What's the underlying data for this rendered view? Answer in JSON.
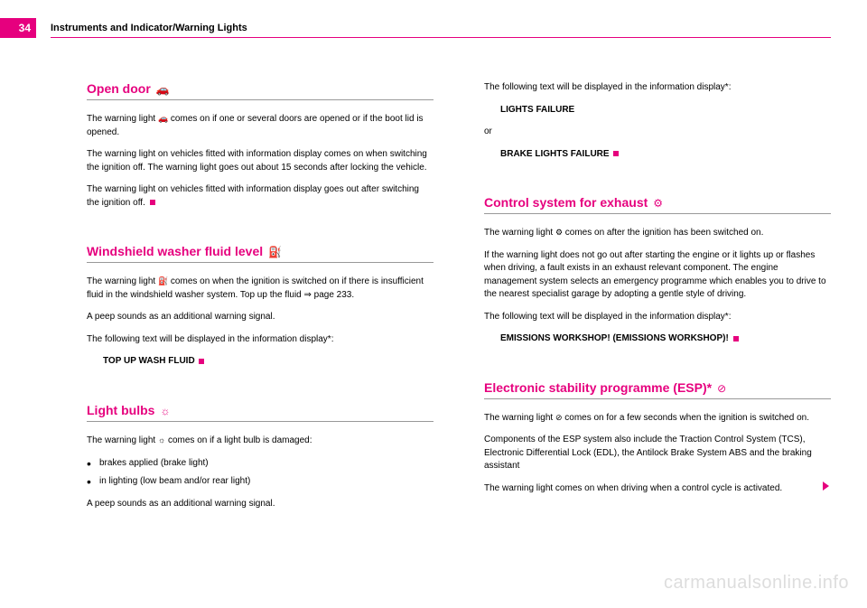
{
  "page_number": "34",
  "header_title": "Instruments and Indicator/Warning Lights",
  "left": {
    "s1": {
      "heading": "Open door",
      "icon": "🚗",
      "p1_a": "The warning light ",
      "p1_b": " comes on if one or several doors are opened or if the boot lid is opened.",
      "p2": "The warning light on vehicles fitted with information display comes on when switching the ignition off. The warning light goes out about 15 seconds after locking the vehicle.",
      "p3": "The warning light on vehicles fitted with information display goes out after switching the ignition off."
    },
    "s2": {
      "heading": "Windshield washer fluid level",
      "icon": "⛽",
      "p1_a": "The warning light ",
      "p1_b": " comes on when the ignition is switched on if there is insufficient fluid in the windshield washer system. Top up the fluid ⇒ page 233.",
      "p2": "A peep sounds as an additional warning signal.",
      "p3": "The following text will be displayed in the information display*:",
      "msg": "TOP UP WASH FLUID"
    },
    "s3": {
      "heading": "Light bulbs",
      "icon": "☼",
      "p1_a": "The warning light ",
      "p1_b": " comes on if a light bulb is damaged:",
      "li1": "brakes applied (brake light)",
      "li2": "in lighting (low beam and/or rear light)",
      "p2": "A peep sounds as an additional warning signal."
    }
  },
  "right": {
    "top": {
      "p1": "The following text will be displayed in the information display*:",
      "msg1": "LIGHTS FAILURE",
      "or": "or",
      "msg2": "BRAKE LIGHTS FAILURE"
    },
    "s1": {
      "heading": "Control system for exhaust",
      "icon": "⚙",
      "p1_a": "The warning light ",
      "p1_b": " comes on after the ignition has been switched on.",
      "p2": "If the warning light does not go out after starting the engine or it lights up or flashes when driving, a fault exists in an exhaust relevant component. The engine management system selects an emergency programme which enables you to drive to the nearest specialist garage by adopting a gentle style of driving.",
      "p3": "The following text will be displayed in the information display*:",
      "msg": "EMISSIONS WORKSHOP! (EMISSIONS WORKSHOP)!"
    },
    "s2": {
      "heading": "Electronic stability programme (ESP)*",
      "icon": "⊘",
      "p1_a": "The warning light ",
      "p1_b": " comes on for a few seconds when the ignition is switched on.",
      "p2": "Components of the ESP system also include the Traction Control System (TCS), Electronic Differential Lock (EDL), the Antilock Brake System ABS and the braking assistant",
      "p3": "The warning light comes on when driving when a control cycle is acti­vated."
    }
  },
  "watermark": "carmanualsonline.info"
}
